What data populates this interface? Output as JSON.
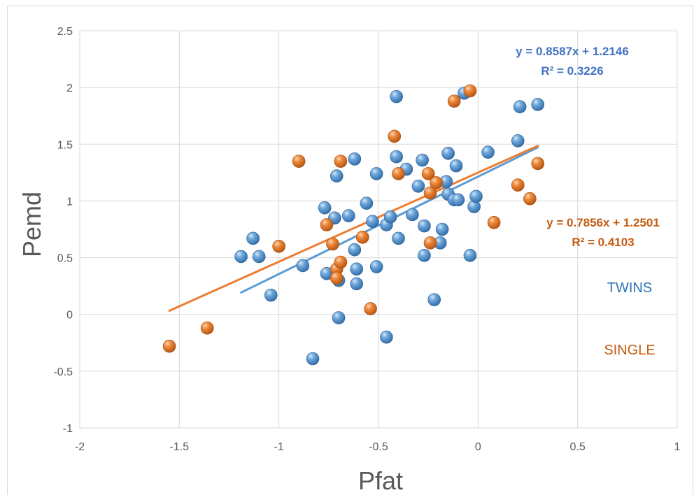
{
  "chart_data": {
    "type": "scatter",
    "xlabel": "Pfat",
    "ylabel": "Pemd",
    "xlim": [
      -2,
      1
    ],
    "ylim": [
      -1,
      2.5
    ],
    "xticks": [
      "-2",
      "-1.5",
      "-1",
      "-0.5",
      "0",
      "0.5",
      "1"
    ],
    "yticks": [
      "-1",
      "-0.5",
      "0",
      "0.5",
      "1",
      "1.5",
      "2",
      "2.5"
    ],
    "grid": true,
    "series": [
      {
        "name": "TWINS",
        "color": "#5b9bd5",
        "trend_color": "#5b9bd5",
        "equation": "y = 0.8587x + 1.2146",
        "r2": "R² = 0.3226",
        "trend": {
          "slope": 0.8587,
          "intercept": 1.2146,
          "x_from": -1.19,
          "x_to": 0.3
        },
        "points": [
          [
            -1.19,
            0.51
          ],
          [
            -1.13,
            0.67
          ],
          [
            -1.1,
            0.51
          ],
          [
            -1.04,
            0.17
          ],
          [
            -0.88,
            0.43
          ],
          [
            -0.83,
            -0.39
          ],
          [
            -0.77,
            0.94
          ],
          [
            -0.76,
            0.36
          ],
          [
            -0.72,
            0.85
          ],
          [
            -0.71,
            1.22
          ],
          [
            -0.7,
            0.3
          ],
          [
            -0.7,
            -0.03
          ],
          [
            -0.65,
            0.87
          ],
          [
            -0.62,
            1.37
          ],
          [
            -0.62,
            0.57
          ],
          [
            -0.61,
            0.4
          ],
          [
            -0.61,
            0.27
          ],
          [
            -0.56,
            0.98
          ],
          [
            -0.53,
            0.82
          ],
          [
            -0.51,
            1.24
          ],
          [
            -0.51,
            0.42
          ],
          [
            -0.46,
            0.79
          ],
          [
            -0.46,
            -0.2
          ],
          [
            -0.44,
            0.86
          ],
          [
            -0.41,
            1.92
          ],
          [
            -0.41,
            1.39
          ],
          [
            -0.4,
            0.67
          ],
          [
            -0.36,
            1.28
          ],
          [
            -0.33,
            0.88
          ],
          [
            -0.3,
            1.13
          ],
          [
            -0.28,
            1.36
          ],
          [
            -0.27,
            0.78
          ],
          [
            -0.27,
            0.52
          ],
          [
            -0.22,
            0.13
          ],
          [
            -0.19,
            0.63
          ],
          [
            -0.18,
            0.75
          ],
          [
            -0.16,
            1.17
          ],
          [
            -0.15,
            1.42
          ],
          [
            -0.15,
            1.06
          ],
          [
            -0.12,
            1.01
          ],
          [
            -0.11,
            1.31
          ],
          [
            -0.1,
            1.01
          ],
          [
            -0.07,
            1.95
          ],
          [
            -0.04,
            0.52
          ],
          [
            -0.02,
            0.95
          ],
          [
            -0.01,
            1.04
          ],
          [
            0.05,
            1.43
          ],
          [
            0.2,
            1.53
          ],
          [
            0.21,
            1.83
          ],
          [
            0.3,
            1.85
          ]
        ]
      },
      {
        "name": "SINGLE",
        "color": "#ed7d31",
        "trend_color": "#ed7d31",
        "equation": "y = 0.7856x + 1.2501",
        "r2": "R² = 0.4103",
        "trend": {
          "slope": 0.7856,
          "intercept": 1.2501,
          "x_from": -1.55,
          "x_to": 0.3
        },
        "points": [
          [
            -1.55,
            -0.28
          ],
          [
            -1.36,
            -0.12
          ],
          [
            -1.0,
            0.6
          ],
          [
            -0.9,
            1.35
          ],
          [
            -0.76,
            0.79
          ],
          [
            -0.73,
            0.62
          ],
          [
            -0.71,
            0.4
          ],
          [
            -0.71,
            0.32
          ],
          [
            -0.69,
            0.46
          ],
          [
            -0.69,
            1.35
          ],
          [
            -0.58,
            0.68
          ],
          [
            -0.54,
            0.05
          ],
          [
            -0.42,
            1.57
          ],
          [
            -0.4,
            1.24
          ],
          [
            -0.25,
            1.24
          ],
          [
            -0.24,
            1.07
          ],
          [
            -0.24,
            0.63
          ],
          [
            -0.21,
            1.16
          ],
          [
            -0.12,
            1.88
          ],
          [
            -0.04,
            1.97
          ],
          [
            0.08,
            0.81
          ],
          [
            0.2,
            1.14
          ],
          [
            0.26,
            1.02
          ],
          [
            0.3,
            1.33
          ]
        ]
      }
    ]
  }
}
